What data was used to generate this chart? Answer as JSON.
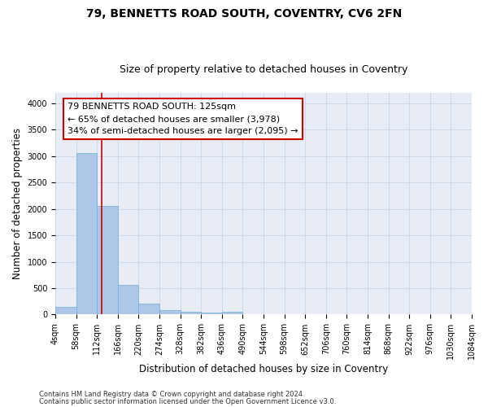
{
  "title_line1": "79, BENNETTS ROAD SOUTH, COVENTRY, CV6 2FN",
  "title_line2": "Size of property relative to detached houses in Coventry",
  "xlabel": "Distribution of detached houses by size in Coventry",
  "ylabel": "Number of detached properties",
  "footer_line1": "Contains HM Land Registry data © Crown copyright and database right 2024.",
  "footer_line2": "Contains public sector information licensed under the Open Government Licence v3.0.",
  "annotation_line1": "79 BENNETTS ROAD SOUTH: 125sqm",
  "annotation_line2": "← 65% of detached houses are smaller (3,978)",
  "annotation_line3": "34% of semi-detached houses are larger (2,095) →",
  "property_size": 125,
  "bin_edges": [
    4,
    58,
    112,
    166,
    220,
    274,
    328,
    382,
    436,
    490,
    544,
    598,
    652,
    706,
    760,
    814,
    868,
    922,
    976,
    1030,
    1084
  ],
  "bar_heights": [
    140,
    3060,
    2060,
    560,
    200,
    80,
    55,
    40,
    50,
    0,
    0,
    0,
    0,
    0,
    0,
    0,
    0,
    0,
    0,
    0
  ],
  "bar_color": "#aec6e8",
  "bar_edge_color": "#6aaed6",
  "vline_color": "#cc0000",
  "vline_x": 125,
  "ylim": [
    0,
    4200
  ],
  "yticks": [
    0,
    500,
    1000,
    1500,
    2000,
    2500,
    3000,
    3500,
    4000
  ],
  "grid_color": "#c8d4e8",
  "background_color": "#e8edf5",
  "annotation_box_color": "#cc0000",
  "title_fontsize": 10,
  "subtitle_fontsize": 9,
  "axis_label_fontsize": 8.5,
  "tick_fontsize": 7,
  "annotation_fontsize": 8,
  "footer_fontsize": 6
}
